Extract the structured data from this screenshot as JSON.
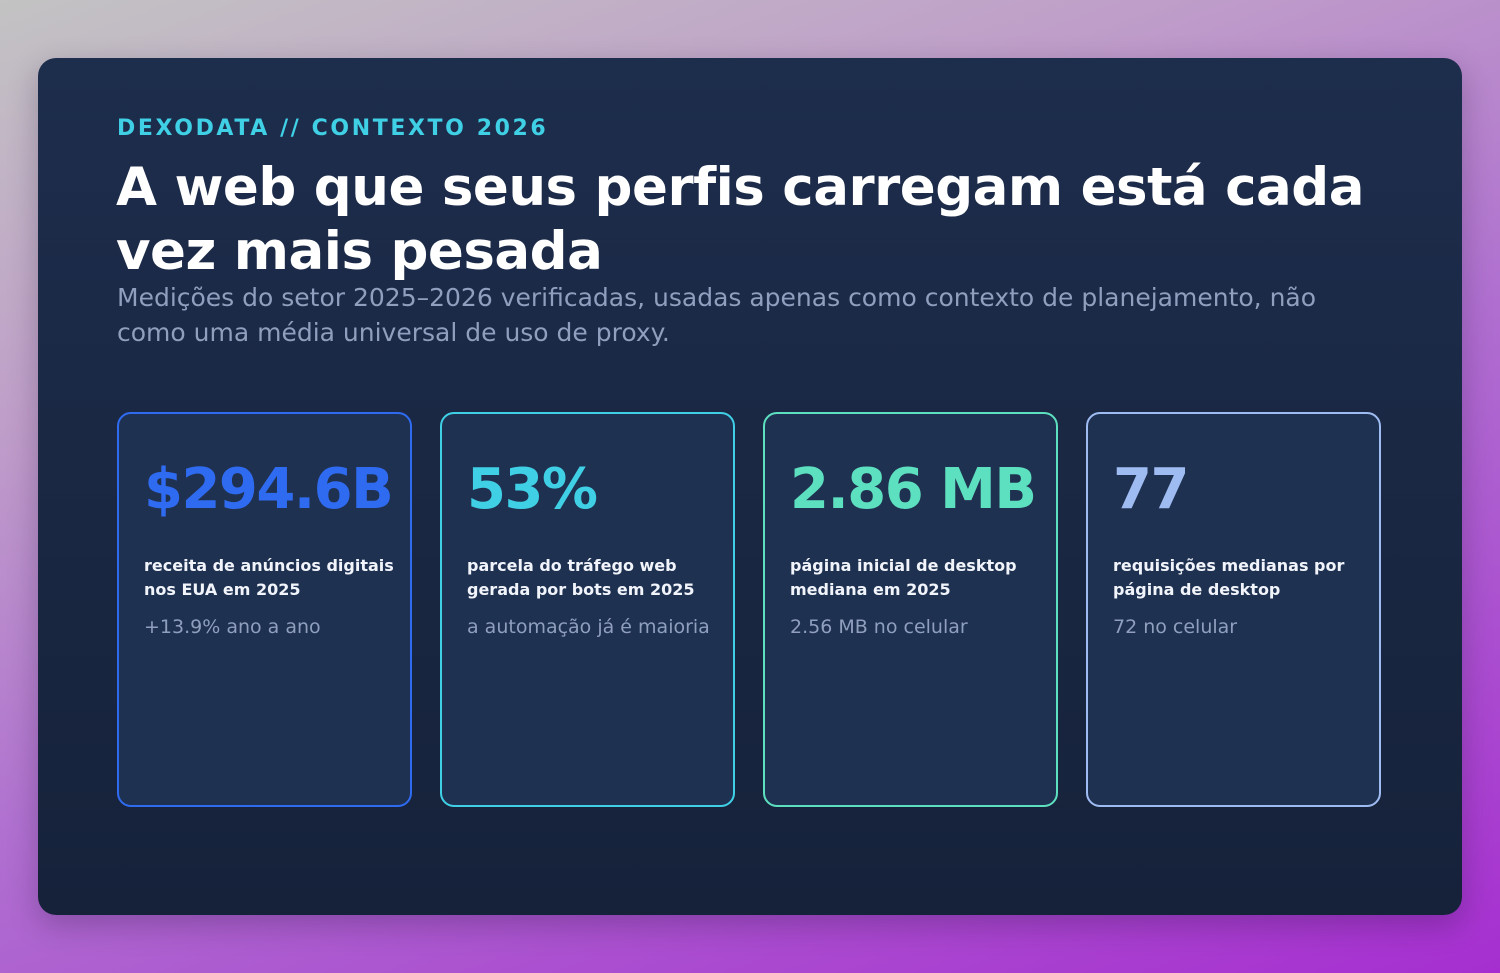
{
  "header": {
    "eyebrow": "DEXODATA // CONTEXTO 2026",
    "title": "A web que seus perfis carregam está cada vez mais pesada",
    "subtitle": "Medições do setor 2025–2026 verificadas, usadas apenas como contexto de planejamento, não como uma média universal de uso de proxy."
  },
  "stats": [
    {
      "value": "$294.6B",
      "label": "receita de anúncios digitais nos EUA em 2025",
      "note": "+13.9% ano a ano",
      "color": "#2f6bf0"
    },
    {
      "value": "53%",
      "label": "parcela do tráfego web gerada por bots em 2025",
      "note": "a automação já é maioria",
      "color": "#3fd0e6"
    },
    {
      "value": "2.86 MB",
      "label": "página inicial de desktop mediana em 2025",
      "note": "2.56 MB no celular",
      "color": "#5de0bf"
    },
    {
      "value": "77",
      "label": "requisições medianas por página de desktop",
      "note": "72 no celular",
      "color": "#9fbcf2"
    }
  ],
  "colors": {
    "accent": "#3fd0e6",
    "card_background": "#1f3151",
    "panel_background": "#1d2d4c",
    "muted_text": "#8f9fbd"
  }
}
